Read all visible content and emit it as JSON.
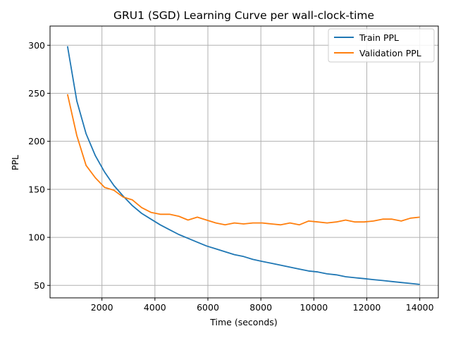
{
  "chart_data": {
    "type": "line",
    "title": "GRU1 (SGD) Learning Curve per wall-clock-time",
    "xlabel": "Time (seconds)",
    "ylabel": "PPL",
    "xlim": [
      40,
      14700
    ],
    "ylim": [
      37,
      320
    ],
    "xticks": [
      2000,
      4000,
      6000,
      8000,
      10000,
      12000,
      14000
    ],
    "yticks": [
      50,
      100,
      150,
      200,
      250,
      300
    ],
    "grid": true,
    "legend_position": "top-right",
    "series": [
      {
        "name": "Train PPL",
        "color": "#1f77b4",
        "x": [
          700,
          1050,
          1400,
          1750,
          2100,
          2450,
          2800,
          3150,
          3500,
          3850,
          4200,
          4550,
          4900,
          5250,
          5600,
          5950,
          6300,
          6650,
          7000,
          7350,
          7700,
          8050,
          8400,
          8750,
          9100,
          9450,
          9800,
          10150,
          10500,
          10850,
          11200,
          11550,
          11900,
          12250,
          12600,
          12950,
          13300,
          13650,
          14000
        ],
        "values": [
          299,
          242,
          208,
          185,
          168,
          154,
          143,
          133,
          125,
          119,
          113,
          108,
          103,
          99,
          95,
          91,
          88,
          85,
          82,
          80,
          77,
          75,
          73,
          71,
          69,
          67,
          65,
          64,
          62,
          61,
          59,
          58,
          57,
          56,
          55,
          54,
          53,
          52,
          51
        ]
      },
      {
        "name": "Validation PPL",
        "color": "#ff7f0e",
        "x": [
          700,
          1050,
          1400,
          1750,
          2100,
          2450,
          2800,
          3150,
          3500,
          3850,
          4200,
          4550,
          4900,
          5250,
          5600,
          5950,
          6300,
          6650,
          7000,
          7350,
          7700,
          8050,
          8400,
          8750,
          9100,
          9450,
          9800,
          10150,
          10500,
          10850,
          11200,
          11550,
          11900,
          12250,
          12600,
          12950,
          13300,
          13650,
          14000
        ],
        "values": [
          249,
          206,
          175,
          162,
          152,
          149,
          142,
          139,
          131,
          126,
          124,
          124,
          122,
          118,
          121,
          118,
          115,
          113,
          115,
          114,
          115,
          115,
          114,
          113,
          115,
          113,
          117,
          116,
          115,
          116,
          118,
          116,
          116,
          117,
          119,
          119,
          117,
          120,
          121
        ]
      }
    ]
  }
}
